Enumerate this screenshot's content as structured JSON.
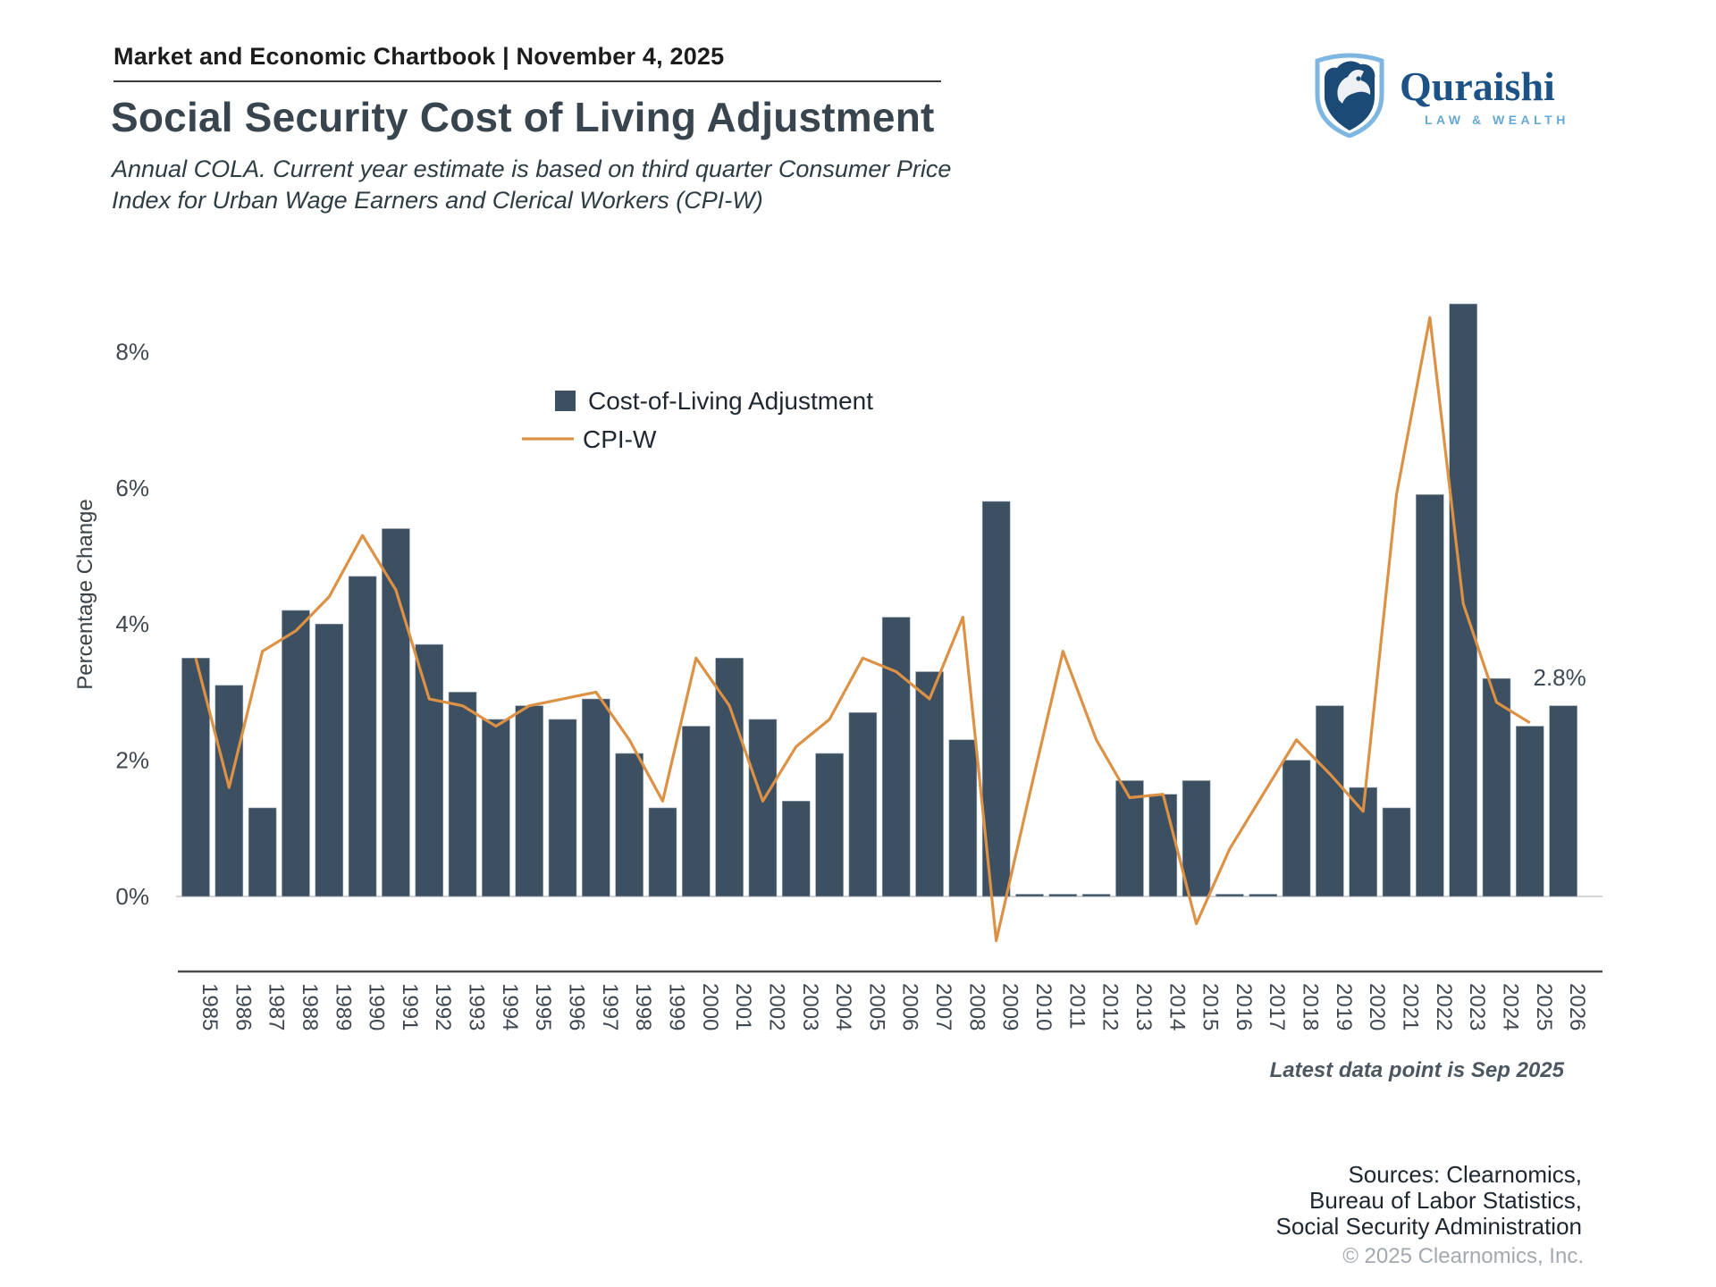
{
  "header": {
    "chartbook_label": "Market and Economic Chartbook | November 4, 2025"
  },
  "logo": {
    "name": "Quraishi",
    "tagline": "LAW & WEALTH"
  },
  "title": "Social Security Cost of Living Adjustment",
  "subtitle": "Annual COLA. Current year estimate is based on third quarter Consumer Price Index for Urban Wage Earners and Clerical Workers (CPI-W)",
  "chart_data": {
    "type": "bar",
    "title": "",
    "xlabel": "",
    "ylabel": "Percentage Change",
    "y_ticks": [
      "0%",
      "2%",
      "4%",
      "6%",
      "8%"
    ],
    "y_tick_values": [
      0,
      2,
      4,
      6,
      8
    ],
    "ylim": [
      -1.1,
      9.2
    ],
    "grid": false,
    "legend_position": "upper center",
    "categories": [
      1985,
      1986,
      1987,
      1988,
      1989,
      1990,
      1991,
      1992,
      1993,
      1994,
      1995,
      1996,
      1997,
      1998,
      1999,
      2000,
      2001,
      2002,
      2003,
      2004,
      2005,
      2006,
      2007,
      2008,
      2009,
      2010,
      2011,
      2012,
      2013,
      2014,
      2015,
      2016,
      2017,
      2018,
      2019,
      2020,
      2021,
      2022,
      2023,
      2024,
      2025,
      2026
    ],
    "series": [
      {
        "name": "Cost-of-Living Adjustment",
        "type": "bar",
        "color": "#3C5062",
        "values": [
          3.5,
          3.1,
          1.3,
          4.2,
          4.0,
          4.7,
          5.4,
          3.7,
          3.0,
          2.6,
          2.8,
          2.6,
          2.9,
          2.1,
          1.3,
          2.5,
          3.5,
          2.6,
          1.4,
          2.1,
          2.7,
          4.1,
          3.3,
          2.3,
          5.8,
          0,
          0,
          0,
          1.7,
          1.5,
          1.7,
          0,
          0,
          2.0,
          2.8,
          1.6,
          1.3,
          5.9,
          8.7,
          3.2,
          2.5,
          2.8
        ]
      },
      {
        "name": "CPI-W",
        "type": "line",
        "color": "#DC9144",
        "values": [
          3.5,
          1.6,
          3.6,
          3.9,
          4.4,
          5.3,
          4.5,
          2.9,
          2.8,
          2.5,
          2.8,
          2.9,
          3.0,
          2.3,
          1.4,
          3.5,
          2.8,
          1.4,
          2.2,
          2.6,
          3.5,
          3.3,
          2.9,
          4.1,
          -0.65,
          1.5,
          3.6,
          2.3,
          1.45,
          1.5,
          -0.4,
          0.7,
          1.5,
          2.3,
          1.8,
          1.25,
          5.9,
          8.5,
          4.3,
          2.85,
          2.55,
          null
        ]
      }
    ],
    "annotation": {
      "text": "2.8%",
      "year": 2026,
      "value": 2.8
    },
    "footnote": "Latest data point is Sep 2025"
  },
  "footer": {
    "sources_lines": [
      "Sources: Clearnomics,",
      "Bureau of Labor Statistics,",
      "Social Security Administration"
    ],
    "copyright": "© 2025 Clearnomics, Inc."
  },
  "colors": {
    "bar": "#3C5062",
    "line": "#DC9144",
    "accent_navy": "#1d5286",
    "accent_lightblue": "#7db6e0"
  }
}
